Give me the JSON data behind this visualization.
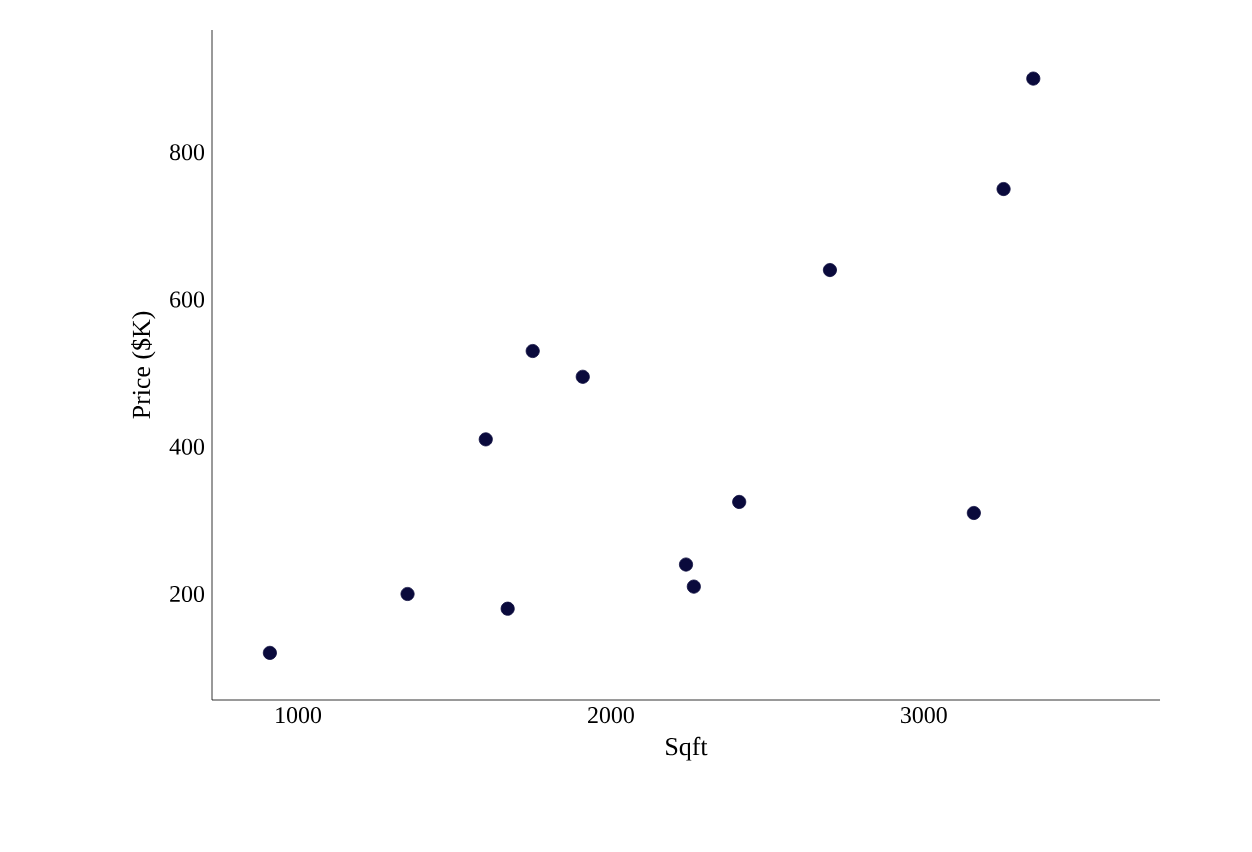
{
  "chart_data": {
    "type": "scatter",
    "xlabel": "Sqft",
    "ylabel": "Price ($K)",
    "x": [
      910,
      1350,
      1600,
      1670,
      1750,
      1910,
      2240,
      2265,
      2410,
      2700,
      3160,
      3255,
      3350
    ],
    "values": [
      120,
      200,
      410,
      180,
      530,
      495,
      240,
      210,
      325,
      640,
      310,
      750,
      900
    ],
    "color": "#0a0a3c",
    "xlim": [
      725,
      3755
    ],
    "ylim": [
      56,
      966
    ],
    "xticks": [
      1000,
      2000,
      3000
    ],
    "yticks": [
      200,
      400,
      600,
      800
    ]
  }
}
